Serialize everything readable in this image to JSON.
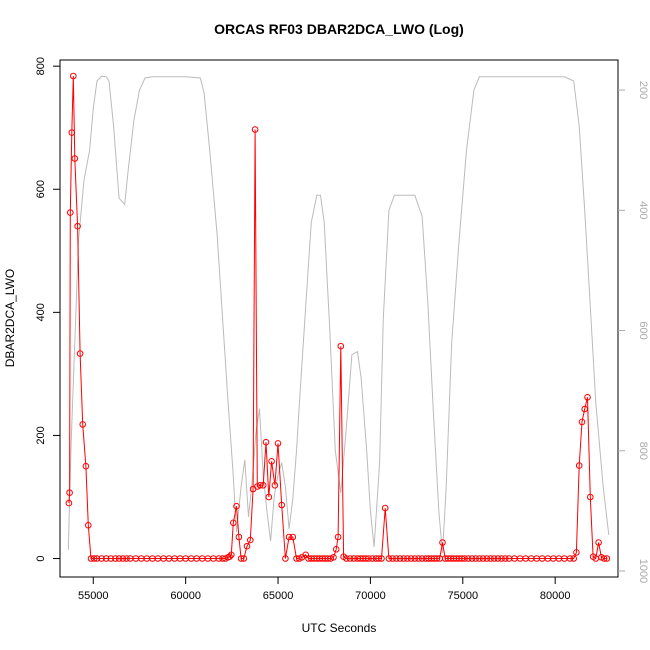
{
  "chart_data": {
    "type": "line",
    "title": "ORCAS RF03 DBAR2DCA_LWO (Log)",
    "xlabel": "UTC Seconds",
    "ylabel": "DBAR2DCA_LWO",
    "xlim": [
      53200,
      83400
    ],
    "ylim": [
      -30,
      810
    ],
    "xticks": [
      55000,
      60000,
      65000,
      70000,
      75000,
      80000
    ],
    "yticks": [
      0,
      200,
      400,
      600,
      800
    ],
    "right_axis": {
      "ylim": [
        1010,
        150
      ],
      "ticks": [
        200,
        400,
        600,
        800,
        1000
      ],
      "color": "#aaaaaa",
      "label": ""
    },
    "series": [
      {
        "color": "#ff0000",
        "marker": "open-circle",
        "points": [
          [
            53680,
            90
          ],
          [
            53720,
            107
          ],
          [
            53760,
            562
          ],
          [
            53840,
            692
          ],
          [
            53920,
            784
          ],
          [
            54000,
            650
          ],
          [
            54150,
            540
          ],
          [
            54290,
            333
          ],
          [
            54430,
            218
          ],
          [
            54600,
            150
          ],
          [
            54730,
            54
          ],
          [
            54880,
            0
          ],
          [
            55050,
            0
          ],
          [
            55200,
            0
          ],
          [
            55450,
            0
          ],
          [
            55700,
            0
          ],
          [
            55950,
            0
          ],
          [
            56200,
            0
          ],
          [
            56400,
            0
          ],
          [
            56600,
            0
          ],
          [
            56800,
            0
          ],
          [
            57000,
            0
          ],
          [
            57300,
            0
          ],
          [
            57600,
            0
          ],
          [
            57900,
            0
          ],
          [
            58200,
            0
          ],
          [
            58500,
            0
          ],
          [
            58800,
            0
          ],
          [
            59100,
            0
          ],
          [
            59400,
            0
          ],
          [
            59700,
            0
          ],
          [
            60000,
            0
          ],
          [
            60300,
            0
          ],
          [
            60600,
            0
          ],
          [
            60900,
            0
          ],
          [
            61200,
            0
          ],
          [
            61500,
            0
          ],
          [
            61800,
            0
          ],
          [
            62000,
            0
          ],
          [
            62150,
            0
          ],
          [
            62300,
            2
          ],
          [
            62380,
            3
          ],
          [
            62470,
            6
          ],
          [
            62580,
            58
          ],
          [
            62750,
            85
          ],
          [
            62880,
            35
          ],
          [
            63000,
            0
          ],
          [
            63150,
            0
          ],
          [
            63320,
            20
          ],
          [
            63500,
            30
          ],
          [
            63650,
            113
          ],
          [
            63760,
            697
          ],
          [
            63880,
            117
          ],
          [
            64030,
            119
          ],
          [
            64200,
            119
          ],
          [
            64350,
            189
          ],
          [
            64500,
            100
          ],
          [
            64650,
            158
          ],
          [
            64830,
            119
          ],
          [
            65000,
            187
          ],
          [
            65200,
            87
          ],
          [
            65400,
            0
          ],
          [
            65600,
            35
          ],
          [
            65800,
            35
          ],
          [
            66000,
            0
          ],
          [
            66150,
            0
          ],
          [
            66300,
            2
          ],
          [
            66500,
            6
          ],
          [
            66650,
            0
          ],
          [
            66800,
            0
          ],
          [
            66950,
            0
          ],
          [
            67100,
            0
          ],
          [
            67250,
            0
          ],
          [
            67400,
            0
          ],
          [
            67550,
            0
          ],
          [
            67700,
            0
          ],
          [
            67850,
            0
          ],
          [
            68000,
            2
          ],
          [
            68150,
            15
          ],
          [
            68250,
            35
          ],
          [
            68400,
            345
          ],
          [
            68550,
            3
          ],
          [
            68700,
            0
          ],
          [
            68900,
            0
          ],
          [
            69100,
            0
          ],
          [
            69300,
            0
          ],
          [
            69450,
            0
          ],
          [
            69600,
            0
          ],
          [
            69750,
            0
          ],
          [
            69900,
            0
          ],
          [
            70100,
            0
          ],
          [
            70300,
            0
          ],
          [
            70450,
            0
          ],
          [
            70600,
            0
          ],
          [
            70800,
            82
          ],
          [
            71000,
            0
          ],
          [
            71200,
            0
          ],
          [
            71400,
            0
          ],
          [
            71600,
            0
          ],
          [
            71800,
            0
          ],
          [
            72000,
            0
          ],
          [
            72200,
            0
          ],
          [
            72400,
            0
          ],
          [
            72600,
            0
          ],
          [
            72800,
            0
          ],
          [
            73000,
            0
          ],
          [
            73150,
            0
          ],
          [
            73300,
            0
          ],
          [
            73450,
            0
          ],
          [
            73600,
            0
          ],
          [
            73750,
            0
          ],
          [
            73900,
            26
          ],
          [
            74050,
            0
          ],
          [
            74200,
            0
          ],
          [
            74350,
            0
          ],
          [
            74500,
            0
          ],
          [
            74650,
            0
          ],
          [
            74800,
            0
          ],
          [
            74950,
            0
          ],
          [
            75100,
            0
          ],
          [
            75300,
            0
          ],
          [
            75500,
            0
          ],
          [
            75700,
            0
          ],
          [
            75900,
            0
          ],
          [
            76100,
            0
          ],
          [
            76300,
            0
          ],
          [
            76500,
            0
          ],
          [
            76700,
            0
          ],
          [
            76900,
            0
          ],
          [
            77100,
            0
          ],
          [
            77300,
            0
          ],
          [
            77500,
            0
          ],
          [
            77800,
            0
          ],
          [
            78100,
            0
          ],
          [
            78400,
            0
          ],
          [
            78700,
            0
          ],
          [
            79000,
            0
          ],
          [
            79300,
            0
          ],
          [
            79600,
            0
          ],
          [
            79900,
            0
          ],
          [
            80200,
            0
          ],
          [
            80500,
            0
          ],
          [
            80800,
            0
          ],
          [
            81000,
            0
          ],
          [
            81150,
            10
          ],
          [
            81300,
            151
          ],
          [
            81450,
            222
          ],
          [
            81600,
            243
          ],
          [
            81750,
            262
          ],
          [
            81900,
            100
          ],
          [
            82050,
            3
          ],
          [
            82200,
            0
          ],
          [
            82350,
            26
          ],
          [
            82500,
            2
          ],
          [
            82650,
            0
          ],
          [
            82800,
            0
          ]
        ]
      },
      {
        "color": "#bbbbbb",
        "marker": "none",
        "axis": "right",
        "points": [
          [
            53650,
            965
          ],
          [
            53800,
            790
          ],
          [
            53950,
            660
          ],
          [
            54200,
            450
          ],
          [
            54500,
            350
          ],
          [
            54800,
            300
          ],
          [
            55000,
            230
          ],
          [
            55200,
            185
          ],
          [
            55450,
            177
          ],
          [
            55700,
            178
          ],
          [
            55850,
            185
          ],
          [
            56100,
            260
          ],
          [
            56400,
            380
          ],
          [
            56700,
            390
          ],
          [
            56900,
            330
          ],
          [
            57200,
            250
          ],
          [
            57500,
            200
          ],
          [
            57800,
            180
          ],
          [
            58200,
            178
          ],
          [
            59000,
            178
          ],
          [
            60000,
            178
          ],
          [
            60800,
            180
          ],
          [
            61000,
            205
          ],
          [
            61300,
            300
          ],
          [
            61700,
            440
          ],
          [
            62000,
            580
          ],
          [
            62300,
            720
          ],
          [
            62550,
            830
          ],
          [
            62750,
            935
          ],
          [
            63000,
            860
          ],
          [
            63200,
            815
          ],
          [
            63400,
            910
          ],
          [
            63600,
            850
          ],
          [
            63800,
            770
          ],
          [
            64000,
            730
          ],
          [
            64200,
            840
          ],
          [
            64400,
            900
          ],
          [
            64600,
            950
          ],
          [
            64800,
            875
          ],
          [
            65000,
            840
          ],
          [
            65200,
            820
          ],
          [
            65400,
            860
          ],
          [
            65600,
            930
          ],
          [
            65800,
            880
          ],
          [
            66000,
            800
          ],
          [
            66200,
            700
          ],
          [
            66500,
            560
          ],
          [
            66800,
            420
          ],
          [
            67100,
            375
          ],
          [
            67300,
            375
          ],
          [
            67500,
            420
          ],
          [
            67800,
            600
          ],
          [
            68100,
            800
          ],
          [
            68400,
            870
          ],
          [
            68700,
            760
          ],
          [
            69000,
            640
          ],
          [
            69300,
            635
          ],
          [
            69500,
            680
          ],
          [
            69800,
            800
          ],
          [
            70000,
            900
          ],
          [
            70200,
            960
          ],
          [
            70500,
            820
          ],
          [
            70700,
            580
          ],
          [
            71000,
            400
          ],
          [
            71300,
            375
          ],
          [
            71600,
            375
          ],
          [
            72000,
            375
          ],
          [
            72400,
            375
          ],
          [
            72800,
            410
          ],
          [
            73100,
            550
          ],
          [
            73400,
            730
          ],
          [
            73700,
            900
          ],
          [
            73900,
            970
          ],
          [
            74100,
            860
          ],
          [
            74400,
            620
          ],
          [
            74800,
            450
          ],
          [
            75200,
            300
          ],
          [
            75600,
            200
          ],
          [
            75900,
            178
          ],
          [
            76500,
            178
          ],
          [
            77500,
            178
          ],
          [
            78500,
            178
          ],
          [
            79500,
            178
          ],
          [
            80500,
            178
          ],
          [
            81000,
            185
          ],
          [
            81300,
            260
          ],
          [
            81600,
            400
          ],
          [
            81900,
            560
          ],
          [
            82200,
            720
          ],
          [
            82600,
            860
          ],
          [
            82900,
            940
          ]
        ]
      }
    ],
    "grid": false,
    "legend": "none"
  }
}
